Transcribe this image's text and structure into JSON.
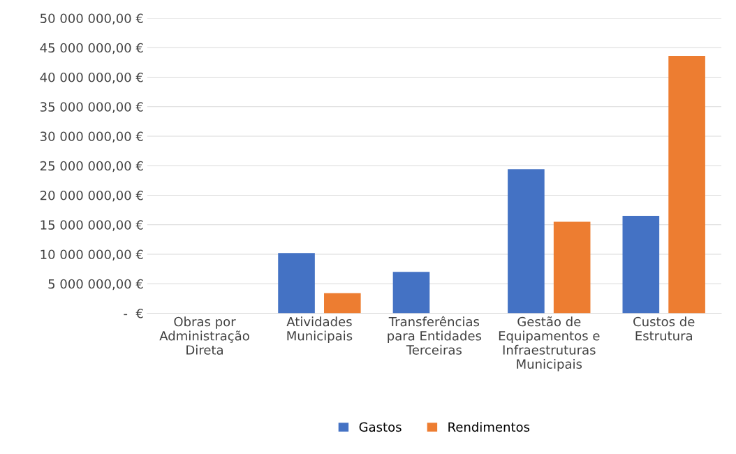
{
  "chart_data": {
    "type": "bar",
    "categories": [
      "Obras por\nAdministração\nDireta",
      "Atividades\nMunicipais",
      "Transferências\npara Entidades\nTerceiras",
      "Gestão de\nEquipamentos e\nInfraestruturas\nMunicipais",
      "Custos de\nEstrutura"
    ],
    "series": [
      {
        "name": "Gastos",
        "color": "#4472c4",
        "values": [
          0,
          10200000,
          7000000,
          24400000,
          16500000
        ]
      },
      {
        "name": "Rendimentos",
        "color": "#ed7d31",
        "values": [
          0,
          3400000,
          0,
          15500000,
          43600000
        ]
      }
    ],
    "ylim": [
      0,
      50000000
    ],
    "yticks": [
      {
        "value": 0,
        "label": "-  €"
      },
      {
        "value": 5000000,
        "label": "5 000 000,00 €"
      },
      {
        "value": 10000000,
        "label": "10 000 000,00 €"
      },
      {
        "value": 15000000,
        "label": "15 000 000,00 €"
      },
      {
        "value": 20000000,
        "label": "20 000 000,00 €"
      },
      {
        "value": 25000000,
        "label": "25 000 000,00 €"
      },
      {
        "value": 30000000,
        "label": "30 000 000,00 €"
      },
      {
        "value": 35000000,
        "label": "35 000 000,00 €"
      },
      {
        "value": 40000000,
        "label": "40 000 000,00 €"
      },
      {
        "value": 45000000,
        "label": "45 000 000,00 €"
      },
      {
        "value": 50000000,
        "label": "50 000 000,00 €"
      }
    ],
    "grid": "y",
    "legend": "bottom"
  }
}
